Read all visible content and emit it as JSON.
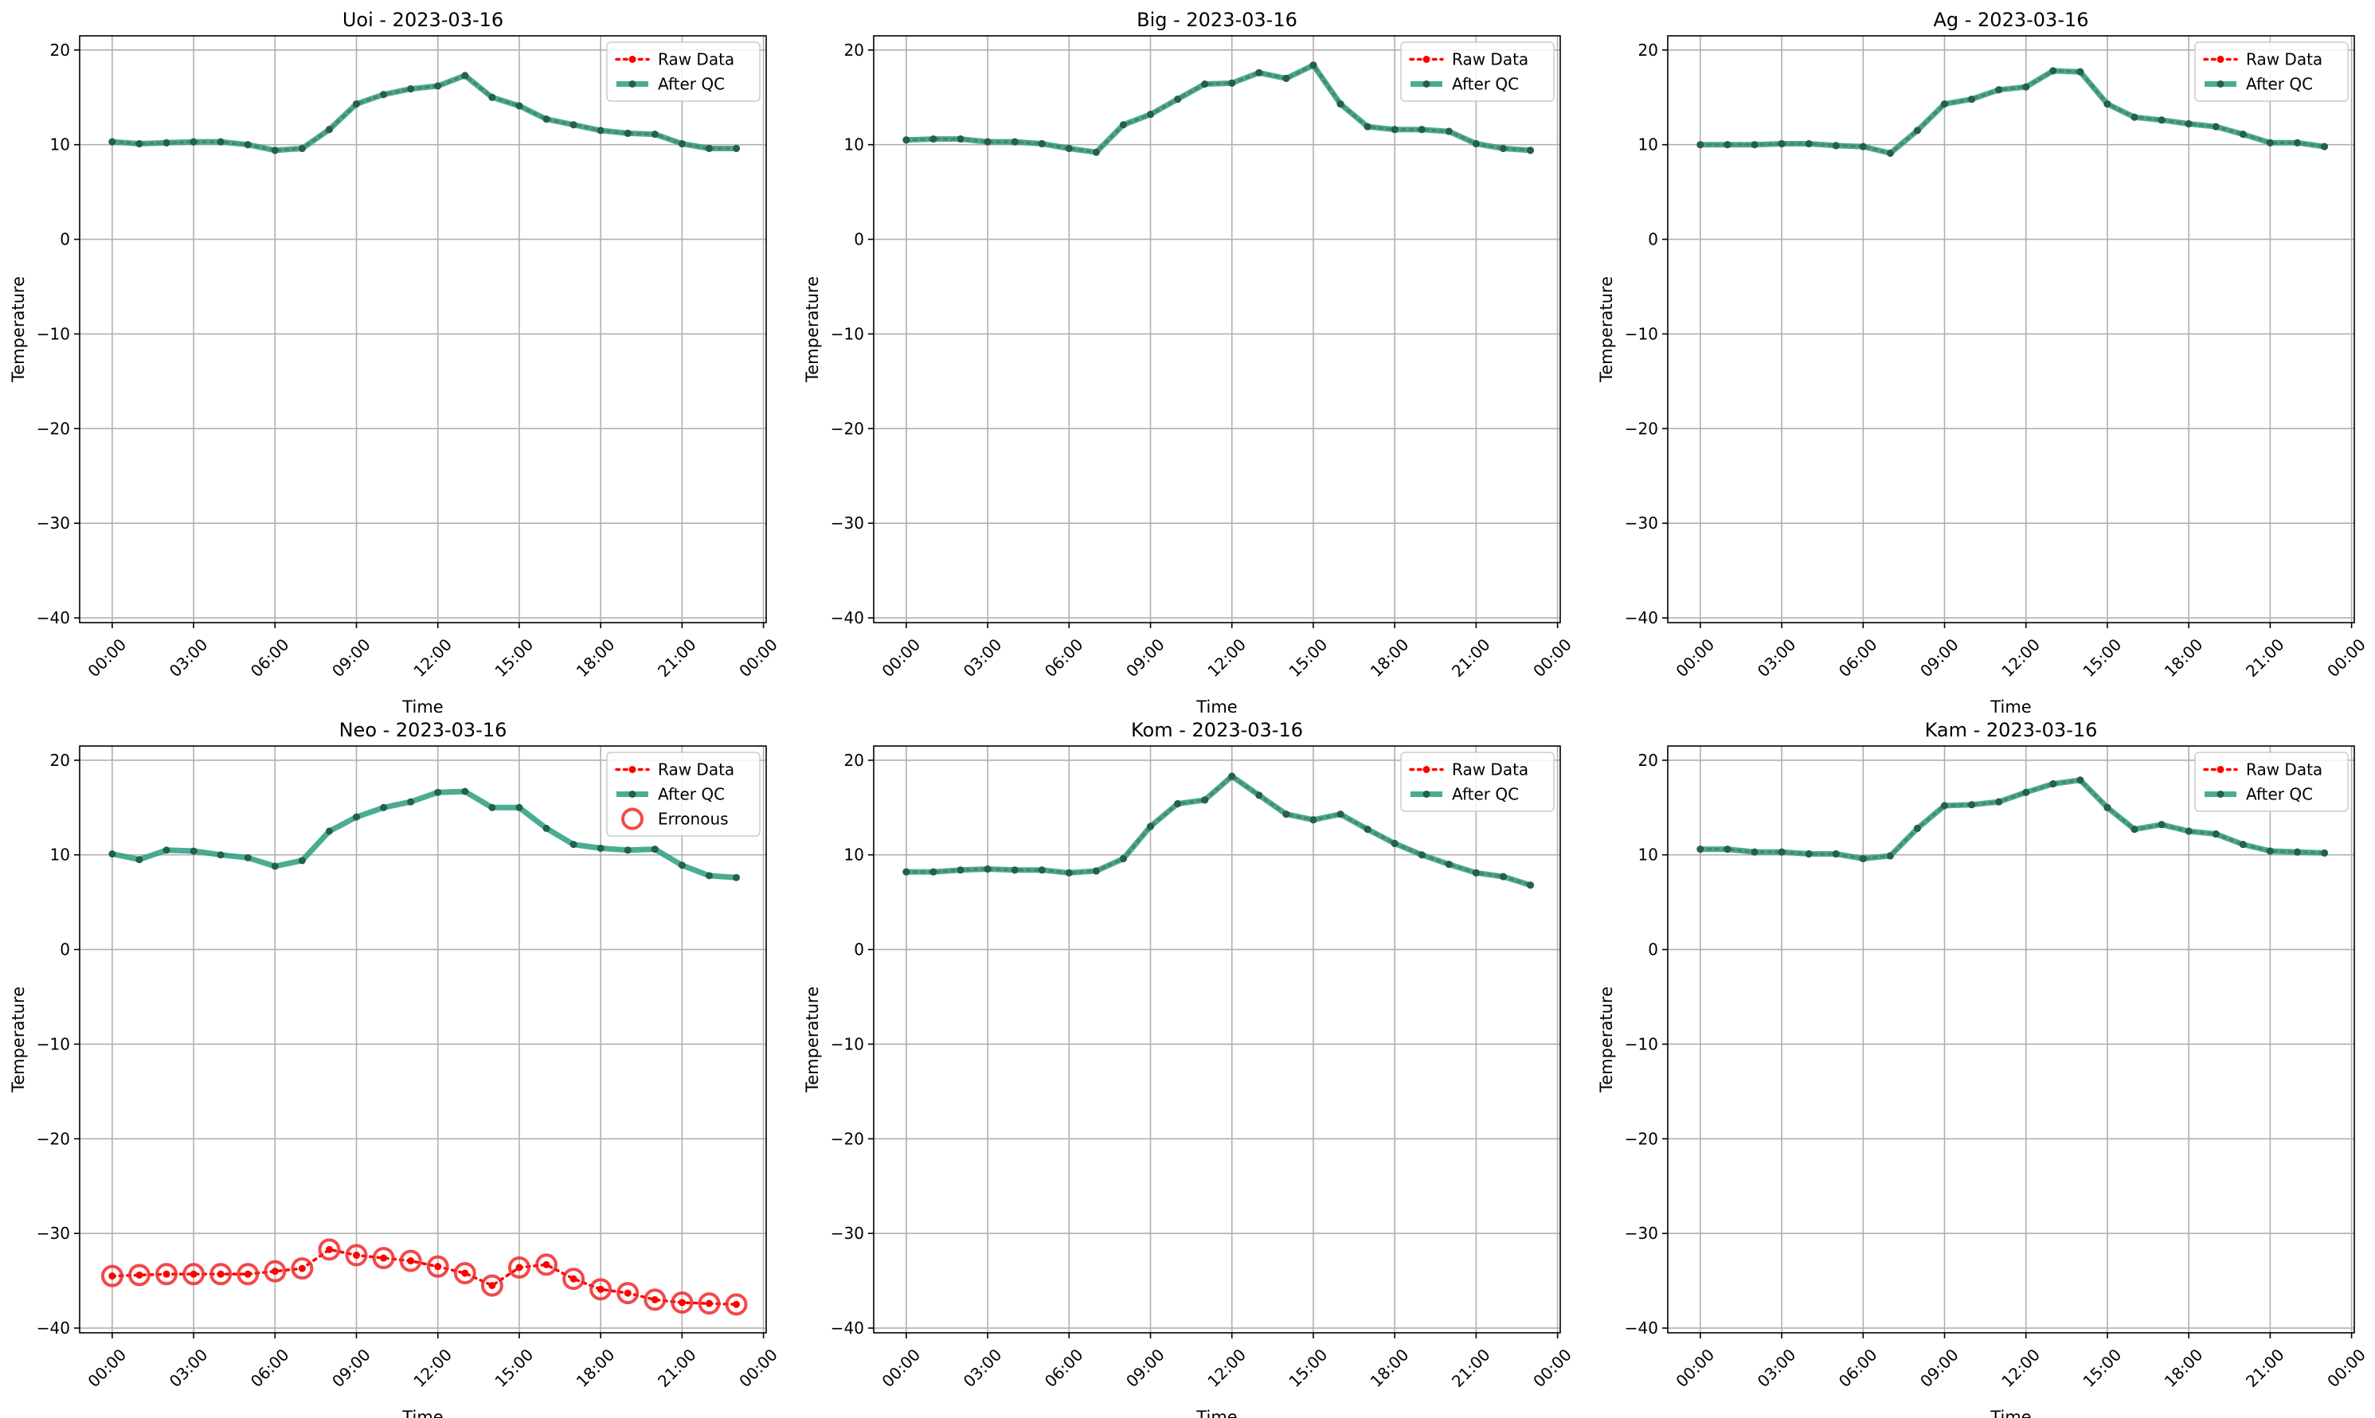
{
  "figure": {
    "colors": {
      "raw": "#ff0000",
      "after_qc": "#2a9d7f",
      "after_qc_marker": "#22604f",
      "erroneous": "#ee2a2a",
      "grid": "#b0b0b0",
      "axis": "#000000"
    }
  },
  "chart_data": [
    {
      "type": "line",
      "title": "Uoi - 2023-03-16",
      "xlabel": "Time",
      "ylabel": "Temperature",
      "xlim": [
        -1.2,
        24.1
      ],
      "ylim": [
        -40.5,
        21.5
      ],
      "x_ticks": [
        0,
        3,
        6,
        9,
        12,
        15,
        18,
        21,
        24
      ],
      "x_tick_labels": [
        "00:00",
        "03:00",
        "06:00",
        "09:00",
        "12:00",
        "15:00",
        "18:00",
        "21:00",
        "00:00"
      ],
      "y_ticks": [
        -40,
        -30,
        -20,
        -10,
        0,
        10,
        20
      ],
      "y_tick_labels": [
        "−40",
        "−30",
        "−20",
        "−10",
        "0",
        "10",
        "20"
      ],
      "grid": true,
      "legend_position": "top-right",
      "x": [
        0,
        1,
        2,
        3,
        4,
        5,
        6,
        7,
        8,
        9,
        10,
        11,
        12,
        13,
        14,
        15,
        16,
        17,
        18,
        19,
        20,
        21,
        22,
        23
      ],
      "series": [
        {
          "name": "Raw Data",
          "style": "dotted",
          "values": [
            10.3,
            10.1,
            10.2,
            10.3,
            10.3,
            10.0,
            9.4,
            9.6,
            11.6,
            14.3,
            15.3,
            15.9,
            16.2,
            17.3,
            15.0,
            14.1,
            12.7,
            12.1,
            11.5,
            11.2,
            11.1,
            10.1,
            9.6,
            9.6
          ]
        },
        {
          "name": "After QC",
          "style": "solid",
          "values": [
            10.3,
            10.1,
            10.2,
            10.3,
            10.3,
            10.0,
            9.4,
            9.6,
            11.6,
            14.3,
            15.3,
            15.9,
            16.2,
            17.3,
            15.0,
            14.1,
            12.7,
            12.1,
            11.5,
            11.2,
            11.1,
            10.1,
            9.6,
            9.6
          ]
        }
      ]
    },
    {
      "type": "line",
      "title": "Big - 2023-03-16",
      "xlabel": "Time",
      "ylabel": "Temperature",
      "xlim": [
        -1.2,
        24.1
      ],
      "ylim": [
        -40.5,
        21.5
      ],
      "x_ticks": [
        0,
        3,
        6,
        9,
        12,
        15,
        18,
        21,
        24
      ],
      "x_tick_labels": [
        "00:00",
        "03:00",
        "06:00",
        "09:00",
        "12:00",
        "15:00",
        "18:00",
        "21:00",
        "00:00"
      ],
      "y_ticks": [
        -40,
        -30,
        -20,
        -10,
        0,
        10,
        20
      ],
      "y_tick_labels": [
        "−40",
        "−30",
        "−20",
        "−10",
        "0",
        "10",
        "20"
      ],
      "grid": true,
      "legend_position": "top-right",
      "x": [
        0,
        1,
        2,
        3,
        4,
        5,
        6,
        7,
        8,
        9,
        10,
        11,
        12,
        13,
        14,
        15,
        16,
        17,
        18,
        19,
        20,
        21,
        22,
        23
      ],
      "series": [
        {
          "name": "Raw Data",
          "style": "dotted",
          "values": [
            10.5,
            10.6,
            10.6,
            10.3,
            10.3,
            10.1,
            9.6,
            9.2,
            12.1,
            13.2,
            14.8,
            16.4,
            16.5,
            17.6,
            17.0,
            18.4,
            14.3,
            11.9,
            11.6,
            11.6,
            11.4,
            10.1,
            9.6,
            9.4
          ]
        },
        {
          "name": "After QC",
          "style": "solid",
          "values": [
            10.5,
            10.6,
            10.6,
            10.3,
            10.3,
            10.1,
            9.6,
            9.2,
            12.1,
            13.2,
            14.8,
            16.4,
            16.5,
            17.6,
            17.0,
            18.4,
            14.3,
            11.9,
            11.6,
            11.6,
            11.4,
            10.1,
            9.6,
            9.4
          ]
        }
      ]
    },
    {
      "type": "line",
      "title": "Ag - 2023-03-16",
      "xlabel": "Time",
      "ylabel": "Temperature",
      "xlim": [
        -1.2,
        24.1
      ],
      "ylim": [
        -40.5,
        21.5
      ],
      "x_ticks": [
        0,
        3,
        6,
        9,
        12,
        15,
        18,
        21,
        24
      ],
      "x_tick_labels": [
        "00:00",
        "03:00",
        "06:00",
        "09:00",
        "12:00",
        "15:00",
        "18:00",
        "21:00",
        "00:00"
      ],
      "y_ticks": [
        -40,
        -30,
        -20,
        -10,
        0,
        10,
        20
      ],
      "y_tick_labels": [
        "−40",
        "−30",
        "−20",
        "−10",
        "0",
        "10",
        "20"
      ],
      "grid": true,
      "legend_position": "top-right",
      "x": [
        0,
        1,
        2,
        3,
        4,
        5,
        6,
        7,
        8,
        9,
        10,
        11,
        12,
        13,
        14,
        15,
        16,
        17,
        18,
        19,
        20,
        21,
        22,
        23
      ],
      "series": [
        {
          "name": "Raw Data",
          "style": "dotted",
          "values": [
            10.0,
            10.0,
            10.0,
            10.1,
            10.1,
            9.9,
            9.8,
            9.1,
            11.5,
            14.3,
            14.8,
            15.8,
            16.1,
            17.8,
            17.7,
            14.3,
            12.9,
            12.6,
            12.2,
            11.9,
            11.1,
            10.2,
            10.2,
            9.8
          ]
        },
        {
          "name": "After QC",
          "style": "solid",
          "values": [
            10.0,
            10.0,
            10.0,
            10.1,
            10.1,
            9.9,
            9.8,
            9.1,
            11.5,
            14.3,
            14.8,
            15.8,
            16.1,
            17.8,
            17.7,
            14.3,
            12.9,
            12.6,
            12.2,
            11.9,
            11.1,
            10.2,
            10.2,
            9.8
          ]
        }
      ]
    },
    {
      "type": "line",
      "title": "Neo - 2023-03-16",
      "xlabel": "Time",
      "ylabel": "Temperature",
      "xlim": [
        -1.2,
        24.1
      ],
      "ylim": [
        -40.5,
        21.5
      ],
      "x_ticks": [
        0,
        3,
        6,
        9,
        12,
        15,
        18,
        21,
        24
      ],
      "x_tick_labels": [
        "00:00",
        "03:00",
        "06:00",
        "09:00",
        "12:00",
        "15:00",
        "18:00",
        "21:00",
        "00:00"
      ],
      "y_ticks": [
        -40,
        -30,
        -20,
        -10,
        0,
        10,
        20
      ],
      "y_tick_labels": [
        "−40",
        "−30",
        "−20",
        "−10",
        "0",
        "10",
        "20"
      ],
      "grid": true,
      "legend_position": "top-right",
      "x": [
        0,
        1,
        2,
        3,
        4,
        5,
        6,
        7,
        8,
        9,
        10,
        11,
        12,
        13,
        14,
        15,
        16,
        17,
        18,
        19,
        20,
        21,
        22,
        23
      ],
      "series": [
        {
          "name": "Raw Data",
          "style": "dotted",
          "values": [
            -34.5,
            -34.4,
            -34.3,
            -34.3,
            -34.3,
            -34.3,
            -34.0,
            -33.7,
            -31.7,
            -32.3,
            -32.6,
            -32.9,
            -33.5,
            -34.2,
            -35.5,
            -33.6,
            -33.3,
            -34.8,
            -35.9,
            -36.3,
            -37.0,
            -37.3,
            -37.4,
            -37.5
          ]
        },
        {
          "name": "After QC",
          "style": "solid",
          "values": [
            10.1,
            9.5,
            10.5,
            10.4,
            10.0,
            9.7,
            8.8,
            9.4,
            12.5,
            14.0,
            15.0,
            15.6,
            16.6,
            16.7,
            15.0,
            15.0,
            12.8,
            11.1,
            10.7,
            10.5,
            10.6,
            8.9,
            7.8,
            7.6
          ]
        },
        {
          "name": "Erronous",
          "style": "circle",
          "values": [
            -34.5,
            -34.4,
            -34.3,
            -34.3,
            -34.3,
            -34.3,
            -34.0,
            -33.7,
            -31.7,
            -32.3,
            -32.6,
            -32.9,
            -33.5,
            -34.2,
            -35.5,
            -33.6,
            -33.3,
            -34.8,
            -35.9,
            -36.3,
            -37.0,
            -37.3,
            -37.4,
            -37.5
          ]
        }
      ]
    },
    {
      "type": "line",
      "title": "Kom - 2023-03-16",
      "xlabel": "Time",
      "ylabel": "Temperature",
      "xlim": [
        -1.2,
        24.1
      ],
      "ylim": [
        -40.5,
        21.5
      ],
      "x_ticks": [
        0,
        3,
        6,
        9,
        12,
        15,
        18,
        21,
        24
      ],
      "x_tick_labels": [
        "00:00",
        "03:00",
        "06:00",
        "09:00",
        "12:00",
        "15:00",
        "18:00",
        "21:00",
        "00:00"
      ],
      "y_ticks": [
        -40,
        -30,
        -20,
        -10,
        0,
        10,
        20
      ],
      "y_tick_labels": [
        "−40",
        "−30",
        "−20",
        "−10",
        "0",
        "10",
        "20"
      ],
      "grid": true,
      "legend_position": "top-right",
      "x": [
        0,
        1,
        2,
        3,
        4,
        5,
        6,
        7,
        8,
        9,
        10,
        11,
        12,
        13,
        14,
        15,
        16,
        17,
        18,
        19,
        20,
        21,
        22,
        23
      ],
      "series": [
        {
          "name": "Raw Data",
          "style": "dotted",
          "values": [
            8.2,
            8.2,
            8.4,
            8.5,
            8.4,
            8.4,
            8.1,
            8.3,
            9.6,
            13.0,
            15.4,
            15.8,
            18.3,
            16.3,
            14.3,
            13.7,
            14.3,
            12.7,
            11.2,
            10.0,
            9.0,
            8.1,
            7.7,
            6.8
          ]
        },
        {
          "name": "After QC",
          "style": "solid",
          "values": [
            8.2,
            8.2,
            8.4,
            8.5,
            8.4,
            8.4,
            8.1,
            8.3,
            9.6,
            13.0,
            15.4,
            15.8,
            18.3,
            16.3,
            14.3,
            13.7,
            14.3,
            12.7,
            11.2,
            10.0,
            9.0,
            8.1,
            7.7,
            6.8
          ]
        }
      ]
    },
    {
      "type": "line",
      "title": "Kam - 2023-03-16",
      "xlabel": "Time",
      "ylabel": "Temperature",
      "xlim": [
        -1.2,
        24.1
      ],
      "ylim": [
        -40.5,
        21.5
      ],
      "x_ticks": [
        0,
        3,
        6,
        9,
        12,
        15,
        18,
        21,
        24
      ],
      "x_tick_labels": [
        "00:00",
        "03:00",
        "06:00",
        "09:00",
        "12:00",
        "15:00",
        "18:00",
        "21:00",
        "00:00"
      ],
      "y_ticks": [
        -40,
        -30,
        -20,
        -10,
        0,
        10,
        20
      ],
      "y_tick_labels": [
        "−40",
        "−30",
        "−20",
        "−10",
        "0",
        "10",
        "20"
      ],
      "grid": true,
      "legend_position": "top-right",
      "x": [
        0,
        1,
        2,
        3,
        4,
        5,
        6,
        7,
        8,
        9,
        10,
        11,
        12,
        13,
        14,
        15,
        16,
        17,
        18,
        19,
        20,
        21,
        22,
        23
      ],
      "series": [
        {
          "name": "Raw Data",
          "style": "dotted",
          "values": [
            10.6,
            10.6,
            10.3,
            10.3,
            10.1,
            10.1,
            9.6,
            9.9,
            12.8,
            15.2,
            15.3,
            15.6,
            16.6,
            17.5,
            17.9,
            15.0,
            12.7,
            13.2,
            12.5,
            12.2,
            11.1,
            10.4,
            10.3,
            10.2
          ]
        },
        {
          "name": "After QC",
          "style": "solid",
          "values": [
            10.6,
            10.6,
            10.3,
            10.3,
            10.1,
            10.1,
            9.6,
            9.9,
            12.8,
            15.2,
            15.3,
            15.6,
            16.6,
            17.5,
            17.9,
            15.0,
            12.7,
            13.2,
            12.5,
            12.2,
            11.1,
            10.4,
            10.3,
            10.2
          ]
        }
      ]
    }
  ]
}
